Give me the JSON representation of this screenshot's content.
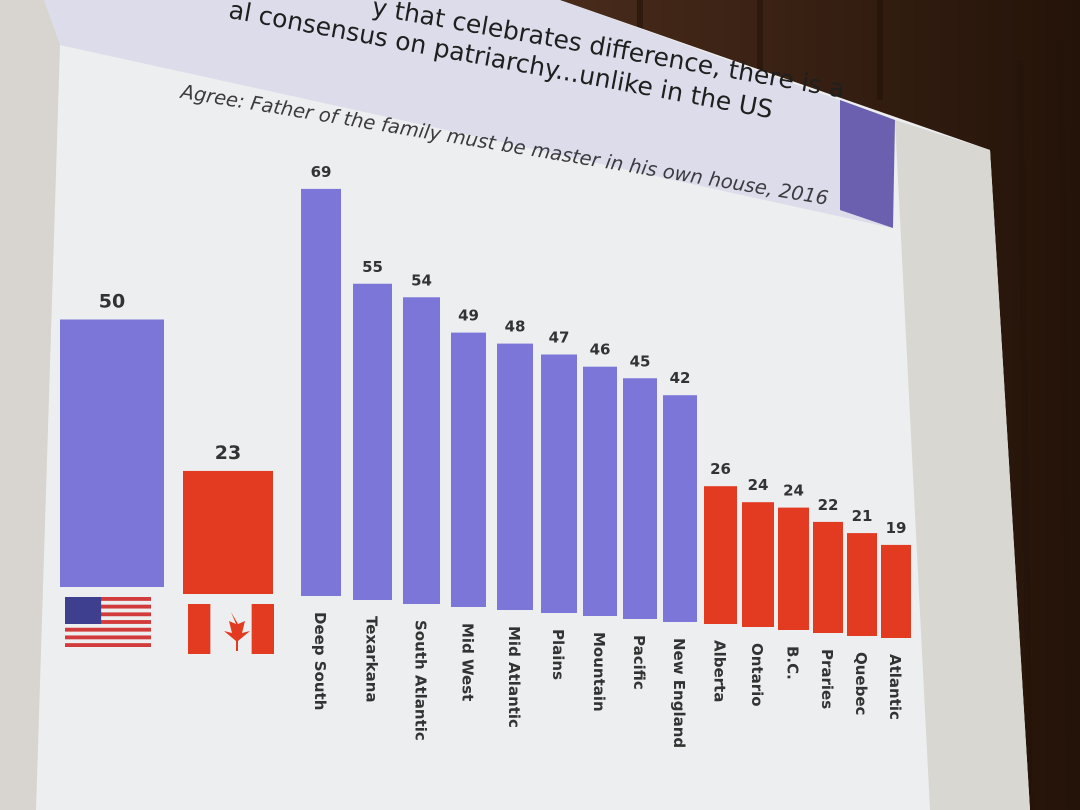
{
  "slide": {
    "title_line_1": "y that celebrates difference, there is a",
    "title_line_2": "al consensus on patriarchy...unlike in the US",
    "colors": {
      "us": "#7b76d8",
      "canada": "#e23b22",
      "header": "#6b5fb0",
      "screen": "#eef0f2"
    }
  },
  "chart_data": {
    "type": "bar",
    "title": "Agree:  Father of the family must be master in his own house, 2016",
    "xlabel": "",
    "ylabel": "",
    "ylim": [
      0,
      70
    ],
    "grid": false,
    "legend": "none",
    "groups": [
      {
        "key": "us",
        "color": "#7b76d8",
        "flag": "us-flag-icon",
        "values": [
          {
            "label": "",
            "value": 50
          }
        ]
      },
      {
        "key": "canada",
        "color": "#e23b22",
        "flag": "canada-flag-icon",
        "values": [
          {
            "label": "",
            "value": 23
          }
        ]
      },
      {
        "key": "us-regions",
        "color": "#7b76d8",
        "values": [
          {
            "label": "Deep South",
            "value": 69
          },
          {
            "label": "Texarkana",
            "value": 55
          },
          {
            "label": "South Atlantic",
            "value": 54
          },
          {
            "label": "Mid West",
            "value": 49
          },
          {
            "label": "Mid Atlantic",
            "value": 48
          },
          {
            "label": "Plains",
            "value": 47
          },
          {
            "label": "Mountain",
            "value": 46
          },
          {
            "label": "Pacific",
            "value": 45
          },
          {
            "label": "New England",
            "value": 42
          }
        ]
      },
      {
        "key": "canada-regions",
        "color": "#e23b22",
        "values": [
          {
            "label": "Alberta",
            "value": 26
          },
          {
            "label": "Ontario",
            "value": 24
          },
          {
            "label": "B.C.",
            "value": 24
          },
          {
            "label": "Praries",
            "value": 22
          },
          {
            "label": "Quebec",
            "value": 21
          },
          {
            "label": "Atlantic",
            "value": 19
          }
        ]
      }
    ]
  }
}
